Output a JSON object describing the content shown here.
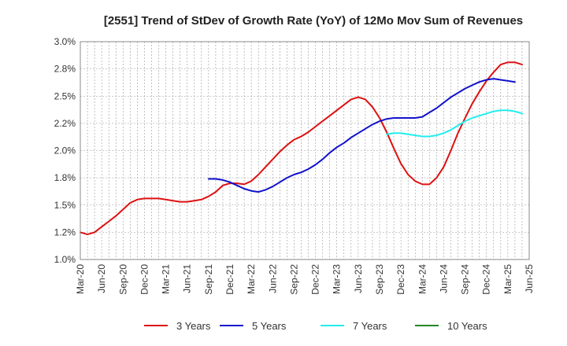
{
  "chart_data": {
    "type": "line",
    "title": "[2551]  Trend of StDev of Growth Rate (YoY) of 12Mo Mov Sum of Revenues",
    "xlabel": "",
    "ylabel": "",
    "x_ticks": [
      "Mar-20",
      "Jun-20",
      "Sep-20",
      "Dec-20",
      "Mar-21",
      "Jun-21",
      "Sep-21",
      "Dec-21",
      "Mar-22",
      "Jun-22",
      "Sep-22",
      "Dec-22",
      "Mar-23",
      "Jun-23",
      "Sep-23",
      "Dec-23",
      "Mar-24",
      "Jun-24",
      "Sep-24",
      "Dec-24",
      "Mar-25",
      "Jun-25"
    ],
    "y_ticks": [
      "1.0%",
      "1.2%",
      "1.5%",
      "1.8%",
      "2.0%",
      "2.2%",
      "2.5%",
      "2.8%",
      "3.0%"
    ],
    "ylim": [
      1.0,
      3.0
    ],
    "grid": true,
    "legend_position": "bottom",
    "series": [
      {
        "name": "3 Years",
        "color": "#dd1111",
        "start_index": 0,
        "values": [
          1.25,
          1.23,
          1.25,
          1.3,
          1.35,
          1.4,
          1.46,
          1.52,
          1.55,
          1.56,
          1.56,
          1.56,
          1.55,
          1.54,
          1.53,
          1.53,
          1.54,
          1.55,
          1.58,
          1.62,
          1.68,
          1.7,
          1.7,
          1.69,
          1.72,
          1.78,
          1.85,
          1.92,
          1.99,
          2.05,
          2.1,
          2.13,
          2.17,
          2.22,
          2.27,
          2.32,
          2.37,
          2.42,
          2.47,
          2.49,
          2.47,
          2.4,
          2.3,
          2.17,
          2.02,
          1.88,
          1.78,
          1.72,
          1.69,
          1.69,
          1.75,
          1.85,
          2.0,
          2.16,
          2.3,
          2.43,
          2.54,
          2.64,
          2.72,
          2.79,
          2.81,
          2.81,
          2.79
        ]
      },
      {
        "name": "5 Years",
        "color": "#1111cc",
        "start_index": 18,
        "values": [
          1.74,
          1.74,
          1.73,
          1.71,
          1.68,
          1.65,
          1.63,
          1.62,
          1.64,
          1.67,
          1.71,
          1.75,
          1.78,
          1.8,
          1.83,
          1.87,
          1.92,
          1.98,
          2.03,
          2.07,
          2.12,
          2.16,
          2.2,
          2.24,
          2.27,
          2.29,
          2.3,
          2.3,
          2.3,
          2.3,
          2.31,
          2.35,
          2.39,
          2.44,
          2.49,
          2.53,
          2.57,
          2.6,
          2.63,
          2.65,
          2.66,
          2.65,
          2.64,
          2.63
        ]
      },
      {
        "name": "7 Years",
        "color": "#22eeee",
        "start_index": 43,
        "values": [
          2.15,
          2.16,
          2.16,
          2.15,
          2.14,
          2.13,
          2.13,
          2.14,
          2.16,
          2.19,
          2.23,
          2.27,
          2.3,
          2.32,
          2.34,
          2.36,
          2.37,
          2.37,
          2.36,
          2.34
        ]
      },
      {
        "name": "10 Years",
        "color": "#228822",
        "start_index": 0,
        "values": []
      }
    ]
  }
}
